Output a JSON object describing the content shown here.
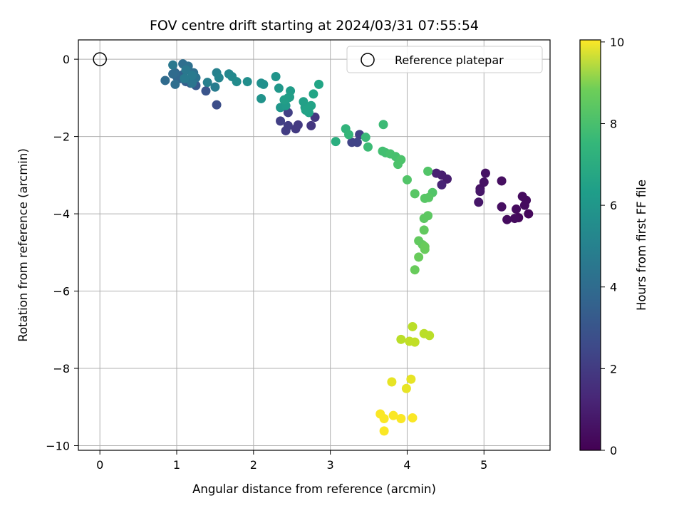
{
  "chart_data": {
    "type": "scatter",
    "title": "FOV centre drift starting at 2024/03/31 07:55:54",
    "xlabel": "Angular distance from reference (arcmin)",
    "ylabel": "Rotation from reference (arcmin)",
    "xlim": [
      -0.28,
      5.86
    ],
    "ylim": [
      -10.12,
      0.5
    ],
    "xticks": [
      0,
      1,
      2,
      3,
      4,
      5
    ],
    "yticks": [
      0,
      -2,
      -4,
      -6,
      -8,
      -10
    ],
    "grid": true,
    "legend": {
      "placement": "top-right",
      "entries": [
        "Reference platepar"
      ]
    },
    "reference_point": {
      "x": 0,
      "y": 0,
      "label": "Reference platepar"
    },
    "colorbar": {
      "label": "Hours from first FF file",
      "range": [
        0,
        10.05
      ],
      "ticks": [
        0,
        2,
        4,
        6,
        8,
        10
      ],
      "colormap": "viridis"
    },
    "points": [
      [
        5.5,
        -3.55,
        0.3
      ],
      [
        5.55,
        -3.65,
        0.3
      ],
      [
        5.42,
        -3.88,
        0.3
      ],
      [
        5.53,
        -3.78,
        0.3
      ],
      [
        5.58,
        -4.0,
        0.2
      ],
      [
        5.45,
        -4.1,
        0.2
      ],
      [
        5.3,
        -4.15,
        0.3
      ],
      [
        5.4,
        -4.12,
        0.3
      ],
      [
        5.23,
        -3.82,
        0.4
      ],
      [
        5.23,
        -3.15,
        0.4
      ],
      [
        5.02,
        -2.95,
        0.5
      ],
      [
        5.0,
        -3.18,
        0.5
      ],
      [
        4.95,
        -3.35,
        0.5
      ],
      [
        4.93,
        -3.7,
        0.6
      ],
      [
        4.95,
        -3.42,
        0.6
      ],
      [
        4.52,
        -3.1,
        0.8
      ],
      [
        4.45,
        -3.0,
        0.8
      ],
      [
        4.38,
        -2.95,
        0.9
      ],
      [
        4.45,
        -3.25,
        1.0
      ],
      [
        2.8,
        -1.5,
        1.6
      ],
      [
        2.75,
        -1.72,
        1.6
      ],
      [
        2.58,
        -1.7,
        1.7
      ],
      [
        2.55,
        -1.8,
        1.7
      ],
      [
        2.45,
        -1.72,
        1.8
      ],
      [
        2.42,
        -1.85,
        1.8
      ],
      [
        2.35,
        -1.6,
        1.9
      ],
      [
        2.45,
        -1.38,
        1.9
      ],
      [
        3.38,
        -1.95,
        1.9
      ],
      [
        3.35,
        -2.15,
        2.0
      ],
      [
        3.28,
        -2.15,
        2.0
      ],
      [
        1.52,
        -1.18,
        2.4
      ],
      [
        1.38,
        -0.82,
        2.6
      ],
      [
        1.25,
        -0.68,
        2.8
      ],
      [
        1.18,
        -0.62,
        2.9
      ],
      [
        1.12,
        -0.58,
        3.0
      ],
      [
        1.08,
        -0.4,
        3.1
      ],
      [
        1.05,
        -0.5,
        3.2
      ],
      [
        1.0,
        -0.45,
        3.3
      ],
      [
        0.98,
        -0.35,
        3.4
      ],
      [
        0.95,
        -0.38,
        3.5
      ],
      [
        0.85,
        -0.55,
        3.5
      ],
      [
        0.98,
        -0.65,
        3.6
      ],
      [
        1.08,
        -0.12,
        3.6
      ],
      [
        1.15,
        -0.18,
        3.7
      ],
      [
        1.22,
        -0.35,
        3.7
      ],
      [
        1.18,
        -0.55,
        3.8
      ],
      [
        1.25,
        -0.48,
        3.8
      ],
      [
        1.2,
        -0.62,
        3.9
      ],
      [
        0.95,
        -0.15,
        4.0
      ],
      [
        1.12,
        -0.28,
        4.0
      ],
      [
        1.2,
        -0.42,
        4.1
      ],
      [
        1.1,
        -0.5,
        4.1
      ],
      [
        1.5,
        -0.72,
        4.2
      ],
      [
        1.4,
        -0.6,
        4.3
      ],
      [
        1.52,
        -0.35,
        4.4
      ],
      [
        1.55,
        -0.48,
        4.5
      ],
      [
        1.68,
        -0.38,
        4.6
      ],
      [
        1.72,
        -0.45,
        4.7
      ],
      [
        1.78,
        -0.58,
        4.8
      ],
      [
        1.92,
        -0.58,
        4.9
      ],
      [
        2.1,
        -0.62,
        5.0
      ],
      [
        2.13,
        -0.65,
        5.0
      ],
      [
        2.1,
        -1.02,
        5.1
      ],
      [
        2.29,
        -0.45,
        5.2
      ],
      [
        2.33,
        -0.75,
        5.3
      ],
      [
        2.35,
        -1.25,
        5.3
      ],
      [
        2.42,
        -1.2,
        5.4
      ],
      [
        2.45,
        -1.0,
        5.5
      ],
      [
        2.48,
        -0.82,
        5.5
      ],
      [
        2.4,
        -1.05,
        5.6
      ],
      [
        2.47,
        -0.98,
        5.6
      ],
      [
        2.65,
        -1.1,
        5.7
      ],
      [
        2.67,
        -1.25,
        5.7
      ],
      [
        2.72,
        -1.38,
        5.8
      ],
      [
        2.68,
        -1.32,
        5.8
      ],
      [
        2.75,
        -1.2,
        5.8
      ],
      [
        2.78,
        -0.9,
        5.9
      ],
      [
        2.85,
        -0.65,
        5.9
      ],
      [
        3.07,
        -2.13,
        6.3
      ],
      [
        3.2,
        -1.8,
        6.5
      ],
      [
        3.24,
        -1.95,
        6.6
      ],
      [
        3.46,
        -2.02,
        6.7
      ],
      [
        3.49,
        -2.27,
        6.8
      ],
      [
        3.69,
        -1.69,
        6.8
      ],
      [
        3.68,
        -2.38,
        7.0
      ],
      [
        3.72,
        -2.42,
        7.0
      ],
      [
        3.78,
        -2.45,
        7.1
      ],
      [
        3.85,
        -2.52,
        7.1
      ],
      [
        3.92,
        -2.6,
        7.2
      ],
      [
        3.88,
        -2.72,
        7.2
      ],
      [
        4.0,
        -3.12,
        7.3
      ],
      [
        4.27,
        -2.9,
        7.3
      ],
      [
        4.33,
        -3.45,
        7.3
      ],
      [
        4.28,
        -3.58,
        7.4
      ],
      [
        4.23,
        -3.6,
        7.4
      ],
      [
        4.1,
        -3.48,
        7.4
      ],
      [
        4.27,
        -4.05,
        7.5
      ],
      [
        4.22,
        -4.12,
        7.5
      ],
      [
        4.22,
        -4.42,
        7.6
      ],
      [
        4.15,
        -4.7,
        7.6
      ],
      [
        4.2,
        -4.8,
        7.6
      ],
      [
        4.23,
        -4.85,
        7.7
      ],
      [
        4.23,
        -4.92,
        7.7
      ],
      [
        4.15,
        -5.12,
        7.7
      ],
      [
        4.1,
        -5.45,
        7.7
      ],
      [
        4.07,
        -6.92,
        9.0
      ],
      [
        4.22,
        -7.1,
        9.0
      ],
      [
        4.29,
        -7.15,
        9.0
      ],
      [
        3.92,
        -7.25,
        9.0
      ],
      [
        4.03,
        -7.3,
        9.1
      ],
      [
        4.1,
        -7.32,
        9.1
      ],
      [
        4.05,
        -8.28,
        9.7
      ],
      [
        3.8,
        -8.35,
        9.7
      ],
      [
        3.99,
        -8.52,
        9.7
      ],
      [
        3.65,
        -9.18,
        10.0
      ],
      [
        3.7,
        -9.3,
        10.0
      ],
      [
        3.82,
        -9.22,
        10.0
      ],
      [
        3.92,
        -9.3,
        10.0
      ],
      [
        4.07,
        -9.28,
        10.0
      ],
      [
        3.7,
        -9.62,
        10.0
      ]
    ]
  }
}
